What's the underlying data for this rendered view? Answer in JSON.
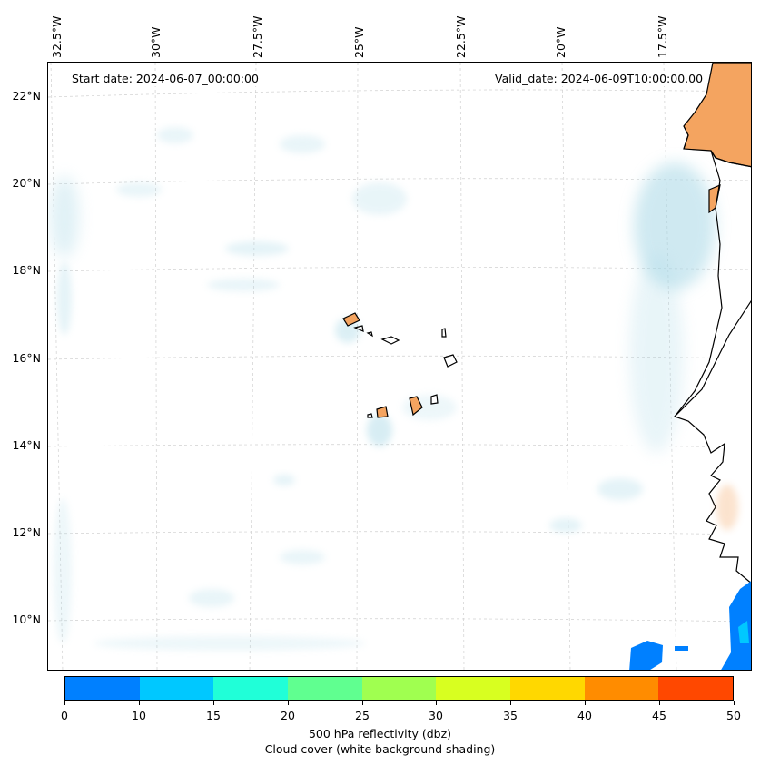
{
  "header": {
    "start_date": "Start date: 2024-06-07_00:00:00",
    "valid_date": "Valid_date: 2024-06-09T10:00:00.00"
  },
  "map": {
    "lon_labels": [
      "32.5°W",
      "30°W",
      "27.5°W",
      "25°W",
      "22.5°W",
      "20°W",
      "17.5°W"
    ],
    "lat_labels": [
      "22°N",
      "20°N",
      "18°N",
      "16°N",
      "14°N",
      "12°N",
      "10°N"
    ],
    "land_color": "#f4a460",
    "cloud_color": "#a8d8e6",
    "ocean_color": "#ffffff"
  },
  "colorbar": {
    "ticks": [
      "0",
      "10",
      "15",
      "20",
      "25",
      "30",
      "35",
      "40",
      "45",
      "50"
    ],
    "colors": [
      "#0080ff",
      "#00c8ff",
      "#20ffd8",
      "#60ff90",
      "#a0ff50",
      "#d8ff20",
      "#ffd800",
      "#ff8c00",
      "#ff4800"
    ],
    "label": "500 hPa reflectivity (dbz)",
    "sublabel": "Cloud cover (white background shading)"
  }
}
